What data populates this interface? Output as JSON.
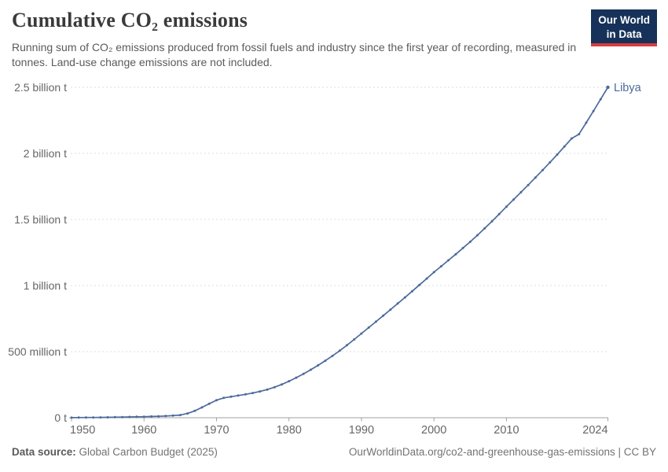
{
  "header": {
    "title": "Cumulative CO₂ emissions",
    "subtitle": "Running sum of CO₂ emissions produced from fossil fuels and industry since the first year of recording, measured in tonnes. Land-use change emissions are not included.",
    "logo_line1": "Our World",
    "logo_line2": "in Data",
    "logo_bg_color": "#16325a",
    "logo_accent_color": "#d93c3f"
  },
  "footer": {
    "source_label": "Data source:",
    "source_value": " Global Carbon Budget (2025)",
    "link_text": "OurWorldinData.org/co2-and-greenhouse-gas-emissions | CC BY"
  },
  "chart_data": {
    "type": "line",
    "title": "Cumulative CO₂ emissions",
    "entity": "Libya",
    "series_color": "#4c6a9c",
    "unit": "tonnes",
    "values_unit": "million tonnes",
    "xlim": [
      1950,
      2024
    ],
    "ylim": [
      0,
      2500
    ],
    "grid": "dashed-horizontal",
    "legend_position": "end-of-line-label",
    "y_ticks": [
      {
        "value": 0,
        "label": "0 t"
      },
      {
        "value": 500,
        "label": "500 million t"
      },
      {
        "value": 1000,
        "label": "1 billion t"
      },
      {
        "value": 1500,
        "label": "1.5 billion t"
      },
      {
        "value": 2000,
        "label": "2 billion t"
      },
      {
        "value": 2500,
        "label": "2.5 billion t"
      }
    ],
    "x_ticks": [
      {
        "year": 1950,
        "label": "1950"
      },
      {
        "year": 1960,
        "label": "1960"
      },
      {
        "year": 1970,
        "label": "1970"
      },
      {
        "year": 1980,
        "label": "1980"
      },
      {
        "year": 1990,
        "label": "1990"
      },
      {
        "year": 2000,
        "label": "2000"
      },
      {
        "year": 2010,
        "label": "2010"
      },
      {
        "year": 2024,
        "label": "2024"
      }
    ],
    "x": [
      1950,
      1951,
      1952,
      1953,
      1954,
      1955,
      1956,
      1957,
      1958,
      1959,
      1960,
      1961,
      1962,
      1963,
      1964,
      1965,
      1966,
      1967,
      1968,
      1969,
      1970,
      1971,
      1972,
      1973,
      1974,
      1975,
      1976,
      1977,
      1978,
      1979,
      1980,
      1981,
      1982,
      1983,
      1984,
      1985,
      1986,
      1987,
      1988,
      1989,
      1990,
      1991,
      1992,
      1993,
      1994,
      1995,
      1996,
      1997,
      1998,
      1999,
      2000,
      2001,
      2002,
      2003,
      2004,
      2005,
      2006,
      2007,
      2008,
      2009,
      2010,
      2011,
      2012,
      2013,
      2014,
      2015,
      2016,
      2017,
      2018,
      2019,
      2020,
      2021,
      2022,
      2023,
      2024
    ],
    "values": [
      0.5,
      1,
      1.5,
      2,
      2.5,
      3,
      4,
      5,
      6,
      7,
      8,
      9.5,
      11,
      13,
      16,
      20,
      32,
      52,
      78,
      106,
      133,
      150,
      159,
      168,
      177,
      187,
      199,
      213,
      231,
      252,
      276,
      303,
      332,
      363,
      396,
      431,
      468,
      507,
      549,
      592,
      637,
      682,
      727,
      772,
      818,
      864,
      910,
      957,
      1005,
      1053,
      1101,
      1146,
      1191,
      1237,
      1284,
      1331,
      1381,
      1433,
      1486,
      1541,
      1597,
      1651,
      1706,
      1761,
      1817,
      1874,
      1932,
      1991,
      2052,
      2113,
      2145,
      2232,
      2320,
      2410,
      2500
    ]
  }
}
